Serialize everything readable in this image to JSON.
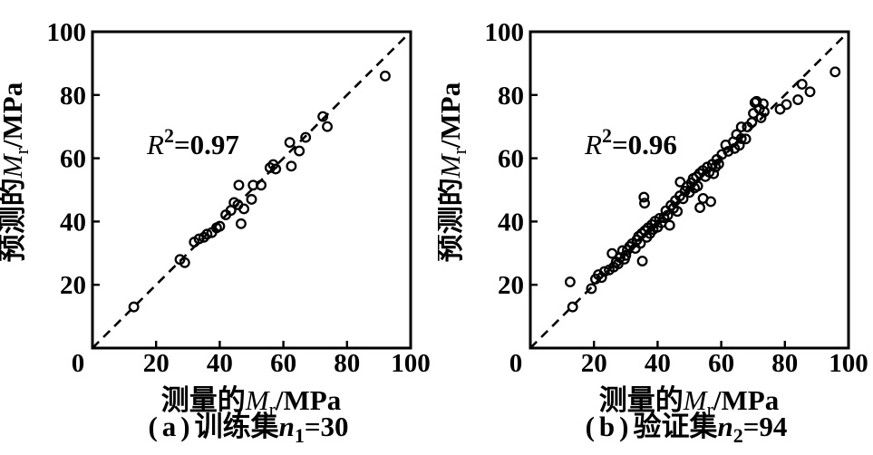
{
  "figure": {
    "background": "#ffffff",
    "ink_color": "#000000",
    "marker": "open-circle",
    "marker_radius": 4.8,
    "marker_stroke": 2.3
  },
  "chart_data": [
    {
      "type": "scatter",
      "panel": "a",
      "caption": {
        "text": "(a) 训练集 n1=30",
        "tag": "(a)",
        "set_name": "训练集",
        "var": "n",
        "var_sub": "1",
        "value": "=30"
      },
      "annotation": {
        "text": "R2=0.97",
        "var": "R",
        "sup": "2",
        "value": "=0.97"
      },
      "xlabel": {
        "cn": "测量的",
        "var": "M",
        "sub": "r",
        "unit": "/MPa",
        "text": "测量的Mr/MPa"
      },
      "ylabel": {
        "cn": "预测的",
        "var": "M",
        "sub": "r",
        "unit": "/MPa",
        "text": "预测的Mr/MPa"
      },
      "xlim": [
        0,
        100
      ],
      "ylim": [
        0,
        100
      ],
      "xticks": [
        0,
        20,
        40,
        60,
        80,
        100
      ],
      "yticks": [
        20,
        40,
        60,
        80,
        100
      ],
      "grid": false,
      "identity_line": true,
      "n_points": 30,
      "points": [
        [
          13,
          13
        ],
        [
          27.5,
          28
        ],
        [
          29,
          27
        ],
        [
          32,
          33.5
        ],
        [
          33.5,
          34.5
        ],
        [
          35,
          35
        ],
        [
          36,
          36
        ],
        [
          37.5,
          36.5
        ],
        [
          39,
          38
        ],
        [
          40,
          38.5
        ],
        [
          41.9,
          42.1
        ],
        [
          43.5,
          43.5
        ],
        [
          44.5,
          46
        ],
        [
          45.7,
          45.3
        ],
        [
          47.6,
          44
        ],
        [
          46.7,
          39.3
        ],
        [
          50,
          47
        ],
        [
          46,
          51.5
        ],
        [
          50.5,
          51.5
        ],
        [
          53,
          51.5
        ],
        [
          55.8,
          57
        ],
        [
          56.8,
          58
        ],
        [
          57.6,
          56.6
        ],
        [
          62.5,
          57.5
        ],
        [
          62,
          65
        ],
        [
          65,
          62.3
        ],
        [
          67,
          66.6
        ],
        [
          72.4,
          73.2
        ],
        [
          73.8,
          70
        ],
        [
          92,
          86
        ]
      ]
    },
    {
      "type": "scatter",
      "panel": "b",
      "caption": {
        "text": "(b) 验证集 n2=94",
        "tag": "(b)",
        "set_name": "验证集",
        "var": "n",
        "var_sub": "2",
        "value": "=94"
      },
      "annotation": {
        "text": "R2=0.96",
        "var": "R",
        "sup": "2",
        "value": "=0.96"
      },
      "xlabel": {
        "cn": "测量的",
        "var": "M",
        "sub": "r",
        "unit": "/MPa",
        "text": "测量的Mr/MPa"
      },
      "ylabel": {
        "cn": "预测的",
        "var": "M",
        "sub": "r",
        "unit": "/MPa",
        "text": "预测的Mr/MPa"
      },
      "xlim": [
        0,
        100
      ],
      "ylim": [
        0,
        100
      ],
      "xticks": [
        0,
        20,
        40,
        60,
        80,
        100
      ],
      "yticks": [
        20,
        40,
        60,
        80,
        100
      ],
      "grid": false,
      "identity_line": true,
      "n_points": 94,
      "points": [
        [
          13.3,
          13
        ],
        [
          12.5,
          20.9
        ],
        [
          19.2,
          18.8
        ],
        [
          20.5,
          21.8
        ],
        [
          21.4,
          23.2
        ],
        [
          22.4,
          22.3
        ],
        [
          23.3,
          24.2
        ],
        [
          24.8,
          24.7
        ],
        [
          26.2,
          25.6
        ],
        [
          27.6,
          26.6
        ],
        [
          25.7,
          29.9
        ],
        [
          29,
          30.8
        ],
        [
          27,
          27.2
        ],
        [
          28.2,
          28.6
        ],
        [
          29.6,
          28.1
        ],
        [
          30,
          29.3
        ],
        [
          30.5,
          31
        ],
        [
          31.2,
          32.1
        ],
        [
          32,
          33
        ],
        [
          33,
          31.5
        ],
        [
          33.5,
          34.2
        ],
        [
          34,
          35.3
        ],
        [
          34.6,
          33.1
        ],
        [
          35,
          36.2
        ],
        [
          35.2,
          27.5
        ],
        [
          36,
          37.1
        ],
        [
          36.6,
          35
        ],
        [
          37,
          38
        ],
        [
          37.6,
          36.2
        ],
        [
          38.2,
          39
        ],
        [
          38.6,
          37.5
        ],
        [
          39.2,
          40.1
        ],
        [
          40,
          38.2
        ],
        [
          40.6,
          41
        ],
        [
          41.2,
          39.6
        ],
        [
          42,
          41.2
        ],
        [
          42.6,
          43.4
        ],
        [
          43.2,
          42
        ],
        [
          43.8,
          38.8
        ],
        [
          35.7,
          47.7
        ],
        [
          35.9,
          45.8
        ],
        [
          44.2,
          45.1
        ],
        [
          45,
          44.2
        ],
        [
          45.6,
          46.6
        ],
        [
          46.2,
          43.2
        ],
        [
          47.1,
          52.5
        ],
        [
          47,
          48.1
        ],
        [
          48,
          47.2
        ],
        [
          48.6,
          49.6
        ],
        [
          49.2,
          51
        ],
        [
          50,
          49.2
        ],
        [
          50.6,
          52.2
        ],
        [
          51.2,
          53.6
        ],
        [
          51.6,
          50.6
        ],
        [
          52.2,
          54.1
        ],
        [
          52.6,
          51.2
        ],
        [
          53.2,
          55.2
        ],
        [
          53.3,
          44.4
        ],
        [
          54.3,
          47.3
        ],
        [
          54.2,
          56.1
        ],
        [
          55,
          54.2
        ],
        [
          55.6,
          57.2
        ],
        [
          56.2,
          55.6
        ],
        [
          56.7,
          46.3
        ],
        [
          57.2,
          58.1
        ],
        [
          57.6,
          55.1
        ],
        [
          58.2,
          57.2
        ],
        [
          58.6,
          59.6
        ],
        [
          59.2,
          58.2
        ],
        [
          60.2,
          61.2
        ],
        [
          61.4,
          64.2
        ],
        [
          62.2,
          62.2
        ],
        [
          63.8,
          65.2
        ],
        [
          64.2,
          63.1
        ],
        [
          64.8,
          67.5
        ],
        [
          65.7,
          64.1
        ],
        [
          66.3,
          66.2
        ],
        [
          67.7,
          66.1
        ],
        [
          66.3,
          69.9
        ],
        [
          68.2,
          69.9
        ],
        [
          69.6,
          71.3
        ],
        [
          70.1,
          74.2
        ],
        [
          70.6,
          77.6
        ],
        [
          71.1,
          78
        ],
        [
          72,
          75.6
        ],
        [
          72.5,
          72.8
        ],
        [
          73.5,
          74.7
        ],
        [
          73.2,
          77.2
        ],
        [
          78.5,
          75.5
        ],
        [
          80.5,
          77
        ],
        [
          84.1,
          78.5
        ],
        [
          85.4,
          83.4
        ],
        [
          87.9,
          81
        ],
        [
          95.8,
          87.3
        ]
      ]
    }
  ]
}
